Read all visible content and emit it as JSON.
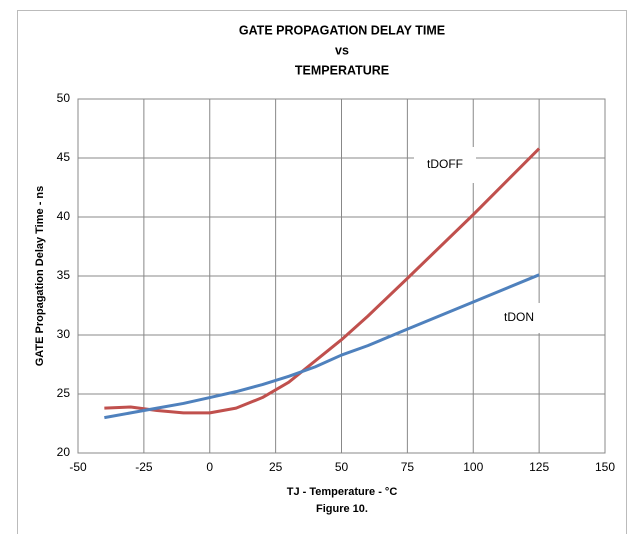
{
  "chart_data": {
    "type": "line",
    "title": [
      "GATE PROPAGATION DELAY TIME",
      "vs",
      "TEMPERATURE"
    ],
    "xlabel": "TJ - Temperature - °C",
    "ylabel": "GATE Propagation Delay Time - ns",
    "caption": "Figure 10.",
    "x": [
      -40,
      -30,
      -20,
      -10,
      0,
      10,
      20,
      30,
      40,
      50,
      60,
      75,
      100,
      125
    ],
    "series": [
      {
        "name": "tDOFF",
        "color": "#c0504d",
        "values": [
          23.8,
          23.9,
          23.6,
          23.4,
          23.4,
          23.8,
          24.7,
          26.0,
          27.8,
          29.6,
          31.6,
          34.8,
          40.2,
          45.8
        ]
      },
      {
        "name": "tDON",
        "color": "#4f81bd",
        "values": [
          23.0,
          23.4,
          23.8,
          24.2,
          24.7,
          25.2,
          25.8,
          26.5,
          27.3,
          28.3,
          29.1,
          30.5,
          32.8,
          35.1
        ]
      }
    ],
    "xlim": [
      -50,
      150
    ],
    "xticks": [
      -50,
      -25,
      0,
      25,
      50,
      75,
      100,
      125,
      150
    ],
    "ylim": [
      20,
      50
    ],
    "yticks": [
      20,
      25,
      30,
      35,
      40,
      45,
      50
    ],
    "grid": true
  }
}
